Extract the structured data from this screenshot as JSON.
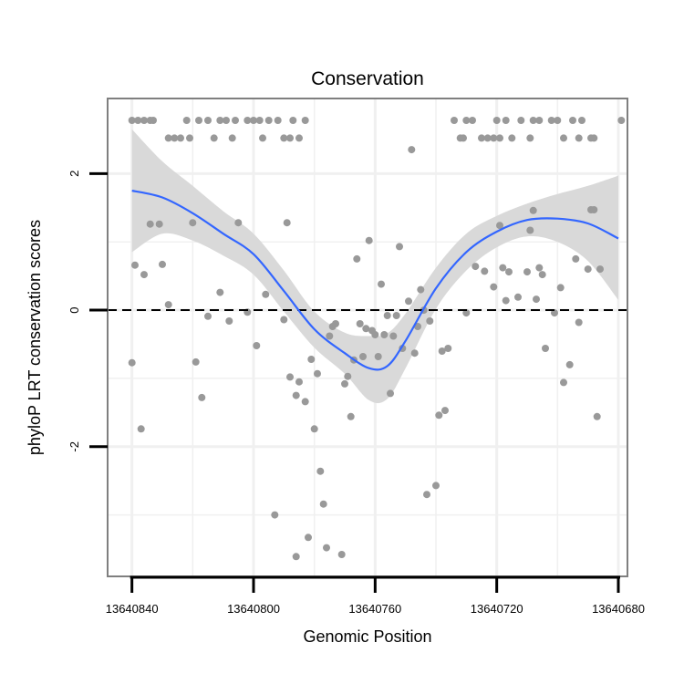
{
  "chart_data": {
    "type": "scatter",
    "title": "Conservation",
    "xlabel": "Genomic Position",
    "ylabel": "phyloP LRT conservation scores",
    "x_reversed": true,
    "xlim": [
      13640848,
      13640677
    ],
    "ylim": [
      -3.9,
      3.1
    ],
    "x_ticks": [
      13640840,
      13640800,
      13640760,
      13640720,
      13640680
    ],
    "x_tick_labels": [
      "13640840",
      "13640800",
      "13640760",
      "13640720",
      "13640680"
    ],
    "y_ticks": [
      -2,
      0,
      2
    ],
    "y_tick_labels": [
      "-2",
      "0",
      "2"
    ],
    "reference_line": {
      "y": 0,
      "style": "dashed"
    },
    "colors": {
      "points": "#999999",
      "smooth": "#3366ff",
      "ribbon": "#d9d9d9",
      "grid": "#f0f0f0",
      "frame": "#7f7f7f"
    },
    "smooth_line": {
      "x": [
        13640840,
        13640830,
        13640820,
        13640810,
        13640800,
        13640790,
        13640780,
        13640770,
        13640762,
        13640756,
        13640750,
        13640740,
        13640730,
        13640720,
        13640710,
        13640700,
        13640690,
        13640680
      ],
      "y": [
        1.75,
        1.65,
        1.42,
        1.12,
        0.82,
        0.28,
        -0.28,
        -0.63,
        -0.85,
        -0.82,
        -0.45,
        0.32,
        0.85,
        1.15,
        1.32,
        1.34,
        1.27,
        1.05
      ]
    },
    "confidence_band": {
      "x": [
        13640840,
        13640830,
        13640820,
        13640810,
        13640800,
        13640790,
        13640780,
        13640770,
        13640762,
        13640756,
        13640750,
        13640740,
        13640730,
        13640720,
        13640710,
        13640700,
        13640690,
        13640680
      ],
      "lower": [
        0.85,
        1.12,
        1.02,
        0.8,
        0.52,
        -0.02,
        -0.55,
        -0.93,
        -1.32,
        -1.3,
        -0.85,
        0.02,
        0.58,
        0.92,
        1.08,
        1.0,
        0.72,
        0.15
      ],
      "upper": [
        2.65,
        2.18,
        1.82,
        1.45,
        1.12,
        0.58,
        -0.02,
        -0.33,
        -0.38,
        -0.34,
        -0.05,
        0.62,
        1.12,
        1.38,
        1.56,
        1.7,
        1.82,
        1.97
      ]
    },
    "points": [
      {
        "x": 13640840,
        "y": 2.78
      },
      {
        "x": 13640838,
        "y": 2.78
      },
      {
        "x": 13640836,
        "y": 2.78
      },
      {
        "x": 13640834,
        "y": 2.78
      },
      {
        "x": 13640833,
        "y": 2.78
      },
      {
        "x": 13640828,
        "y": 2.52
      },
      {
        "x": 13640826,
        "y": 2.52
      },
      {
        "x": 13640824,
        "y": 2.52
      },
      {
        "x": 13640822,
        "y": 2.78
      },
      {
        "x": 13640821,
        "y": 2.52
      },
      {
        "x": 13640818,
        "y": 2.78
      },
      {
        "x": 13640815,
        "y": 2.78
      },
      {
        "x": 13640813,
        "y": 2.52
      },
      {
        "x": 13640811,
        "y": 2.78
      },
      {
        "x": 13640809,
        "y": 2.78
      },
      {
        "x": 13640807,
        "y": 2.52
      },
      {
        "x": 13640806,
        "y": 2.78
      },
      {
        "x": 13640802,
        "y": 2.78
      },
      {
        "x": 13640800,
        "y": 2.78
      },
      {
        "x": 13640798,
        "y": 2.78
      },
      {
        "x": 13640797,
        "y": 2.52
      },
      {
        "x": 13640795,
        "y": 2.78
      },
      {
        "x": 13640792,
        "y": 2.78
      },
      {
        "x": 13640790,
        "y": 2.52
      },
      {
        "x": 13640788,
        "y": 2.52
      },
      {
        "x": 13640787,
        "y": 2.78
      },
      {
        "x": 13640785,
        "y": 2.52
      },
      {
        "x": 13640783,
        "y": 2.78
      },
      {
        "x": 13640734,
        "y": 2.78
      },
      {
        "x": 13640732,
        "y": 2.52
      },
      {
        "x": 13640731,
        "y": 2.52
      },
      {
        "x": 13640730,
        "y": 2.78
      },
      {
        "x": 13640728,
        "y": 2.78
      },
      {
        "x": 13640725,
        "y": 2.52
      },
      {
        "x": 13640723,
        "y": 2.52
      },
      {
        "x": 13640721,
        "y": 2.52
      },
      {
        "x": 13640720,
        "y": 2.78
      },
      {
        "x": 13640719,
        "y": 2.52
      },
      {
        "x": 13640717,
        "y": 2.78
      },
      {
        "x": 13640715,
        "y": 2.52
      },
      {
        "x": 13640712,
        "y": 2.78
      },
      {
        "x": 13640709,
        "y": 2.52
      },
      {
        "x": 13640708,
        "y": 2.78
      },
      {
        "x": 13640706,
        "y": 2.78
      },
      {
        "x": 13640702,
        "y": 2.78
      },
      {
        "x": 13640700,
        "y": 2.78
      },
      {
        "x": 13640698,
        "y": 2.52
      },
      {
        "x": 13640695,
        "y": 2.78
      },
      {
        "x": 13640693,
        "y": 2.52
      },
      {
        "x": 13640692,
        "y": 2.78
      },
      {
        "x": 13640689,
        "y": 2.52
      },
      {
        "x": 13640688,
        "y": 2.52
      },
      {
        "x": 13640679,
        "y": 2.78
      },
      {
        "x": 13640839,
        "y": 0.66
      },
      {
        "x": 13640840,
        "y": -0.77
      },
      {
        "x": 13640837,
        "y": -1.74
      },
      {
        "x": 13640836,
        "y": 0.52
      },
      {
        "x": 13640834,
        "y": 1.26
      },
      {
        "x": 13640831,
        "y": 1.26
      },
      {
        "x": 13640830,
        "y": 0.67
      },
      {
        "x": 13640828,
        "y": 0.08
      },
      {
        "x": 13640820,
        "y": 1.28
      },
      {
        "x": 13640819,
        "y": -0.76
      },
      {
        "x": 13640817,
        "y": -1.28
      },
      {
        "x": 13640815,
        "y": -0.09
      },
      {
        "x": 13640811,
        "y": 0.26
      },
      {
        "x": 13640808,
        "y": -0.16
      },
      {
        "x": 13640805,
        "y": 1.28
      },
      {
        "x": 13640802,
        "y": -0.03
      },
      {
        "x": 13640799,
        "y": -0.52
      },
      {
        "x": 13640796,
        "y": 0.23
      },
      {
        "x": 13640793,
        "y": -3.0
      },
      {
        "x": 13640790,
        "y": -0.14
      },
      {
        "x": 13640789,
        "y": 1.28
      },
      {
        "x": 13640788,
        "y": -0.98
      },
      {
        "x": 13640786,
        "y": -1.25
      },
      {
        "x": 13640785,
        "y": -1.05
      },
      {
        "x": 13640783,
        "y": -1.34
      },
      {
        "x": 13640782,
        "y": -3.33
      },
      {
        "x": 13640786,
        "y": -3.61
      },
      {
        "x": 13640781,
        "y": -0.72
      },
      {
        "x": 13640780,
        "y": -1.74
      },
      {
        "x": 13640779,
        "y": -0.93
      },
      {
        "x": 13640778,
        "y": -2.36
      },
      {
        "x": 13640777,
        "y": -2.84
      },
      {
        "x": 13640776,
        "y": -3.48
      },
      {
        "x": 13640774,
        "y": -0.24
      },
      {
        "x": 13640775,
        "y": -0.38
      },
      {
        "x": 13640773,
        "y": -0.2
      },
      {
        "x": 13640771,
        "y": -3.58
      },
      {
        "x": 13640770,
        "y": -1.08
      },
      {
        "x": 13640769,
        "y": -0.97
      },
      {
        "x": 13640768,
        "y": -1.56
      },
      {
        "x": 13640767,
        "y": -0.73
      },
      {
        "x": 13640766,
        "y": 0.75
      },
      {
        "x": 13640765,
        "y": -0.2
      },
      {
        "x": 13640764,
        "y": -0.68
      },
      {
        "x": 13640763,
        "y": -0.27
      },
      {
        "x": 13640762,
        "y": 1.02
      },
      {
        "x": 13640761,
        "y": -0.3
      },
      {
        "x": 13640760,
        "y": -0.36
      },
      {
        "x": 13640759,
        "y": -0.68
      },
      {
        "x": 13640758,
        "y": 0.38
      },
      {
        "x": 13640757,
        "y": -0.36
      },
      {
        "x": 13640756,
        "y": -0.08
      },
      {
        "x": 13640755,
        "y": -1.22
      },
      {
        "x": 13640754,
        "y": -0.38
      },
      {
        "x": 13640753,
        "y": -0.08
      },
      {
        "x": 13640752,
        "y": 0.93
      },
      {
        "x": 13640751,
        "y": -0.56
      },
      {
        "x": 13640749,
        "y": 0.13
      },
      {
        "x": 13640748,
        "y": 2.35
      },
      {
        "x": 13640747,
        "y": -0.63
      },
      {
        "x": 13640746,
        "y": -0.24
      },
      {
        "x": 13640745,
        "y": 0.3
      },
      {
        "x": 13640744,
        "y": 0.0
      },
      {
        "x": 13640743,
        "y": -2.7
      },
      {
        "x": 13640742,
        "y": -0.16
      },
      {
        "x": 13640740,
        "y": -2.57
      },
      {
        "x": 13640739,
        "y": -1.54
      },
      {
        "x": 13640738,
        "y": -0.6
      },
      {
        "x": 13640737,
        "y": -1.47
      },
      {
        "x": 13640736,
        "y": -0.56
      },
      {
        "x": 13640730,
        "y": -0.04
      },
      {
        "x": 13640727,
        "y": 0.64
      },
      {
        "x": 13640724,
        "y": 0.57
      },
      {
        "x": 13640721,
        "y": 0.34
      },
      {
        "x": 13640719,
        "y": 1.24
      },
      {
        "x": 13640718,
        "y": 0.62
      },
      {
        "x": 13640717,
        "y": 0.14
      },
      {
        "x": 13640716,
        "y": 0.56
      },
      {
        "x": 13640713,
        "y": 0.19
      },
      {
        "x": 13640710,
        "y": 0.56
      },
      {
        "x": 13640709,
        "y": 1.17
      },
      {
        "x": 13640708,
        "y": 1.46
      },
      {
        "x": 13640707,
        "y": 0.16
      },
      {
        "x": 13640706,
        "y": 0.62
      },
      {
        "x": 13640705,
        "y": 0.52
      },
      {
        "x": 13640704,
        "y": -0.56
      },
      {
        "x": 13640701,
        "y": -0.04
      },
      {
        "x": 13640699,
        "y": 0.33
      },
      {
        "x": 13640698,
        "y": -1.06
      },
      {
        "x": 13640696,
        "y": -0.8
      },
      {
        "x": 13640694,
        "y": 0.75
      },
      {
        "x": 13640693,
        "y": -0.18
      },
      {
        "x": 13640690,
        "y": 0.6
      },
      {
        "x": 13640689,
        "y": 1.47
      },
      {
        "x": 13640688,
        "y": 1.47
      },
      {
        "x": 13640687,
        "y": -1.56
      },
      {
        "x": 13640686,
        "y": 0.6
      }
    ]
  }
}
